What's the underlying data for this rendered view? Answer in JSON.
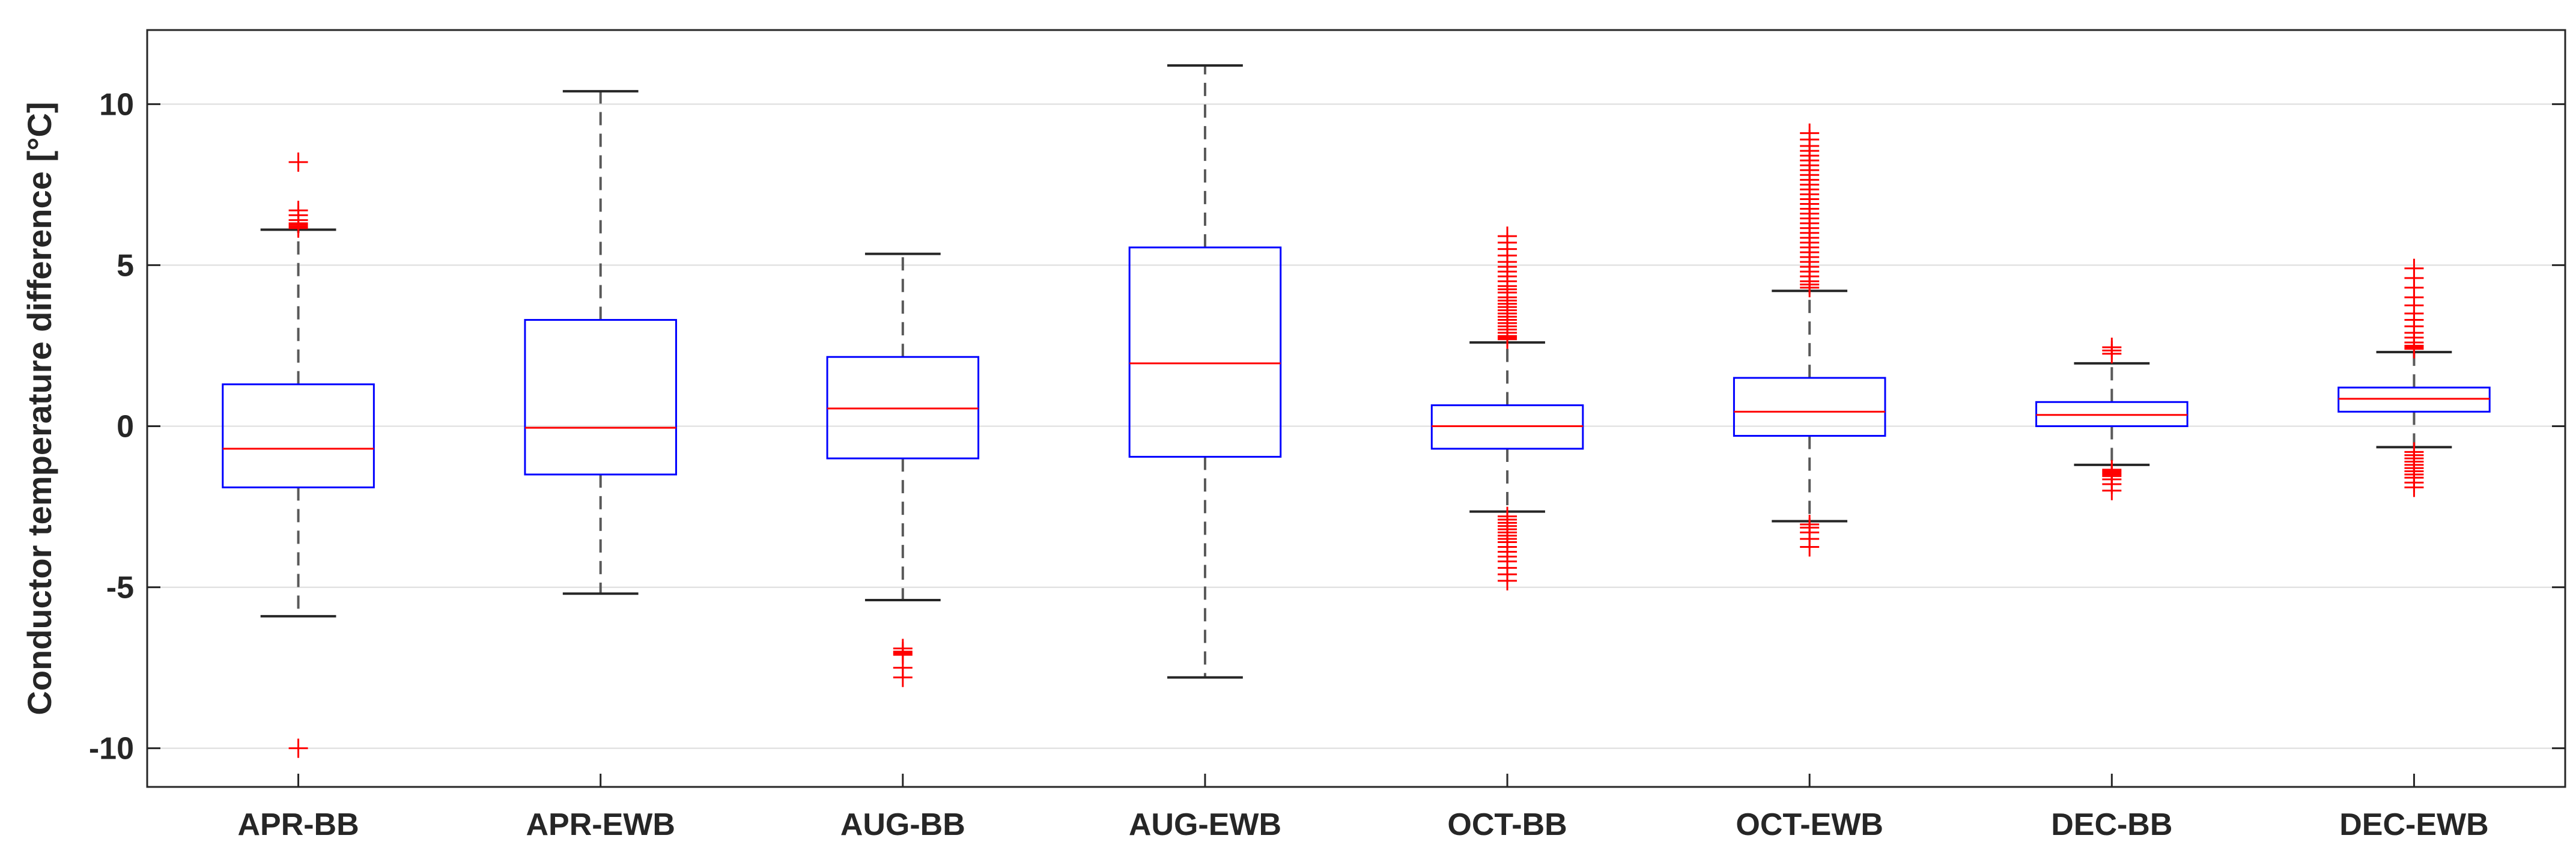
{
  "chart_data": {
    "type": "box",
    "title": "",
    "xlabel": "",
    "ylabel": "Conductor temperature difference [°C]",
    "ylim": [
      -11.2,
      12.3
    ],
    "yticks": [
      -10,
      -5,
      0,
      5,
      10
    ],
    "grid": "horizontal",
    "colors": {
      "box": "#0000ff",
      "median": "#ff0000",
      "whisker": "#595959",
      "outlier": "#ff0000",
      "axis": "#262626",
      "grid": "#dcdcdc"
    },
    "categories": [
      "APR-BB",
      "APR-EWB",
      "AUG-BB",
      "AUG-EWB",
      "OCT-BB",
      "OCT-EWB",
      "DEC-BB",
      "DEC-EWB"
    ],
    "boxes": [
      {
        "label": "APR-BB",
        "lower_whisker": -5.9,
        "q1": -1.9,
        "median": -0.7,
        "q3": 1.3,
        "upper_whisker": 6.1,
        "outliers": [
          8.2,
          6.7,
          6.55,
          6.4,
          6.3,
          6.25,
          6.2,
          6.15,
          -10.0
        ]
      },
      {
        "label": "APR-EWB",
        "lower_whisker": -5.2,
        "q1": -1.5,
        "median": -0.05,
        "q3": 3.3,
        "upper_whisker": 10.4,
        "outliers": []
      },
      {
        "label": "AUG-BB",
        "lower_whisker": -5.4,
        "q1": -1.0,
        "median": 0.55,
        "q3": 2.15,
        "upper_whisker": 5.35,
        "outliers": [
          -6.9,
          -7.0,
          -7.05,
          -7.1,
          -7.5,
          -7.8
        ]
      },
      {
        "label": "AUG-EWB",
        "lower_whisker": -7.8,
        "q1": -0.95,
        "median": 1.95,
        "q3": 5.55,
        "upper_whisker": 11.2,
        "outliers": []
      },
      {
        "label": "OCT-BB",
        "lower_whisker": -2.65,
        "q1": -0.7,
        "median": 0.0,
        "q3": 0.65,
        "upper_whisker": 2.6,
        "outliers": [
          5.9,
          5.7,
          5.5,
          5.3,
          5.1,
          4.95,
          4.8,
          4.65,
          4.5,
          4.35,
          4.25,
          4.15,
          4.0,
          3.9,
          3.8,
          3.7,
          3.6,
          3.5,
          3.4,
          3.3,
          3.2,
          3.1,
          3.0,
          2.9,
          2.8,
          2.75,
          2.7,
          -2.8,
          -2.9,
          -3.0,
          -3.1,
          -3.2,
          -3.3,
          -3.4,
          -3.5,
          -3.6,
          -3.75,
          -3.9,
          -4.05,
          -4.2,
          -4.4,
          -4.6,
          -4.8
        ]
      },
      {
        "label": "OCT-EWB",
        "lower_whisker": -2.95,
        "q1": -0.3,
        "median": 0.45,
        "q3": 1.5,
        "upper_whisker": 4.2,
        "outliers": [
          9.1,
          8.9,
          8.7,
          8.55,
          8.4,
          8.25,
          8.1,
          7.95,
          7.8,
          7.65,
          7.5,
          7.35,
          7.2,
          7.05,
          6.9,
          6.75,
          6.6,
          6.45,
          6.3,
          6.15,
          6.0,
          5.85,
          5.7,
          5.55,
          5.4,
          5.25,
          5.1,
          4.95,
          4.8,
          4.65,
          4.5,
          4.4,
          4.3,
          -3.05,
          -3.15,
          -3.3,
          -3.5,
          -3.75
        ]
      },
      {
        "label": "DEC-BB",
        "lower_whisker": -1.2,
        "q1": 0.0,
        "median": 0.35,
        "q3": 0.75,
        "upper_whisker": 1.95,
        "outliers": [
          2.45,
          2.35,
          2.25,
          -1.35,
          -1.4,
          -1.45,
          -1.5,
          -1.55,
          -1.65,
          -1.8,
          -2.0
        ]
      },
      {
        "label": "DEC-EWB",
        "lower_whisker": -0.65,
        "q1": 0.45,
        "median": 0.85,
        "q3": 1.2,
        "upper_whisker": 2.3,
        "outliers": [
          4.9,
          4.6,
          4.3,
          4.0,
          3.75,
          3.5,
          3.3,
          3.1,
          2.9,
          2.75,
          2.6,
          2.5,
          2.45,
          2.4,
          -0.8,
          -0.9,
          -1.0,
          -1.1,
          -1.2,
          -1.3,
          -1.4,
          -1.5,
          -1.6,
          -1.75,
          -1.9
        ]
      }
    ]
  }
}
